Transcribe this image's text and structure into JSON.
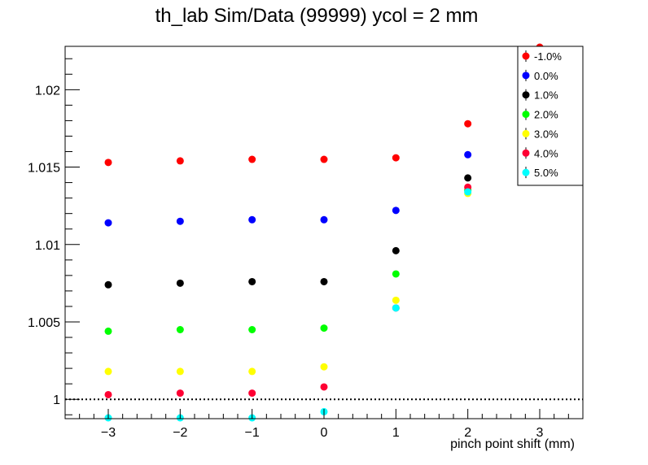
{
  "chart_data": {
    "type": "scatter",
    "title": "th_lab Sim/Data (99999) ycol = 2 mm",
    "xlabel": "pinch point shift (mm)",
    "ylabel": "",
    "xlim": [
      -3.6,
      3.6
    ],
    "ylim": [
      0.99875,
      1.0228
    ],
    "x_ticks": [
      -3,
      -2,
      -1,
      0,
      1,
      2,
      3
    ],
    "x_tick_labels": [
      "−3",
      "−2",
      "−1",
      "0",
      "1",
      "2",
      "3"
    ],
    "y_ticks": [
      1.0,
      1.005,
      1.01,
      1.015,
      1.02
    ],
    "y_tick_labels": [
      "1",
      "1.005",
      "1.01",
      "1.015",
      "1.02"
    ],
    "reference_line": {
      "y": 1.0,
      "style": "dotted",
      "color": "#000000"
    },
    "grid": false,
    "legend_position": "top-right",
    "series": [
      {
        "name": "-1.0%",
        "color": "#ff0000",
        "x": [
          -3,
          -2,
          -1,
          0,
          1,
          2,
          3
        ],
        "y": [
          1.0153,
          1.0154,
          1.0155,
          1.0155,
          1.0156,
          1.0178,
          1.0228
        ]
      },
      {
        "name": "0.0%",
        "color": "#0000ff",
        "x": [
          -3,
          -2,
          -1,
          0,
          1,
          2
        ],
        "y": [
          1.0114,
          1.0115,
          1.0116,
          1.0116,
          1.0122,
          1.0158
        ]
      },
      {
        "name": "1.0%",
        "color": "#000000",
        "x": [
          -3,
          -2,
          -1,
          0,
          1,
          2
        ],
        "y": [
          1.0074,
          1.0075,
          1.0076,
          1.0076,
          1.0096,
          1.0143
        ]
      },
      {
        "name": "2.0%",
        "color": "#00ff00",
        "x": [
          -3,
          -2,
          -1,
          0,
          1,
          2
        ],
        "y": [
          1.0044,
          1.0045,
          1.0045,
          1.0046,
          1.0081,
          1.0135
        ]
      },
      {
        "name": "3.0%",
        "color": "#ffff00",
        "x": [
          -3,
          -2,
          -1,
          0,
          1,
          2
        ],
        "y": [
          1.0018,
          1.0018,
          1.0018,
          1.0021,
          1.0064,
          1.0133
        ]
      },
      {
        "name": "4.0%",
        "color": "#ff0033",
        "x": [
          -3,
          -2,
          -1,
          0,
          1,
          2
        ],
        "y": [
          1.0003,
          1.0004,
          1.0004,
          1.0008,
          1.0059,
          1.0137
        ]
      },
      {
        "name": "5.0%",
        "color": "#00ffff",
        "x": [
          -3,
          -2,
          -1,
          0,
          1,
          2
        ],
        "y": [
          0.9987,
          0.9987,
          0.9987,
          0.9992,
          1.0059,
          1.0134
        ]
      }
    ]
  }
}
